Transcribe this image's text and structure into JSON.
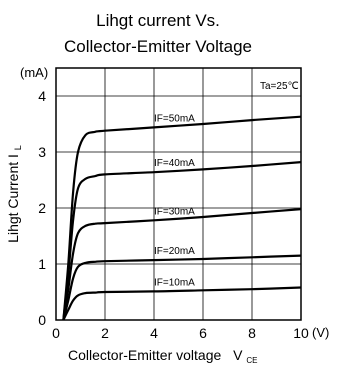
{
  "chart_data": {
    "type": "line",
    "title_lines": [
      "Lihgt current Vs.",
      "Collector-Emitter Voltage"
    ],
    "xlabel": "Collector-Emitter voltage",
    "xlabel_sub": "V",
    "xlabel_sub_small": "CE",
    "ylabel": "Lihgt Current I",
    "ylabel_sub": "L",
    "x_unit": "(V)",
    "y_unit": "(mA)",
    "annotation": "Ta=25℃",
    "xlim": [
      0,
      10
    ],
    "ylim": [
      0,
      4.5
    ],
    "x_ticks": [
      "0",
      "2",
      "4",
      "6",
      "8",
      "10"
    ],
    "x_tick_values": [
      0,
      2,
      4,
      6,
      8,
      10
    ],
    "y_ticks": [
      "0",
      "1",
      "2",
      "3",
      "4"
    ],
    "y_tick_values": [
      0,
      1,
      2,
      3,
      4
    ],
    "grid": true,
    "series": [
      {
        "name": "IF=10mA",
        "x": [
          0.3,
          0.5,
          0.7,
          0.9,
          1.2,
          1.6,
          2,
          4,
          6,
          8,
          10
        ],
        "y": [
          0,
          0.18,
          0.35,
          0.44,
          0.48,
          0.49,
          0.5,
          0.51,
          0.53,
          0.55,
          0.58
        ]
      },
      {
        "name": "IF=20mA",
        "x": [
          0.3,
          0.5,
          0.7,
          0.9,
          1.2,
          1.6,
          2,
          4,
          6,
          8,
          10
        ],
        "y": [
          0,
          0.35,
          0.75,
          0.95,
          1.02,
          1.04,
          1.05,
          1.07,
          1.09,
          1.12,
          1.15
        ]
      },
      {
        "name": "IF=30mA",
        "x": [
          0.3,
          0.5,
          0.7,
          0.9,
          1.2,
          1.6,
          2,
          4,
          6,
          8,
          10
        ],
        "y": [
          0,
          0.55,
          1.2,
          1.55,
          1.68,
          1.72,
          1.73,
          1.78,
          1.84,
          1.91,
          1.98
        ]
      },
      {
        "name": "IF=40mA",
        "x": [
          0.3,
          0.5,
          0.7,
          0.9,
          1.2,
          1.6,
          2,
          4,
          6,
          8,
          10
        ],
        "y": [
          0,
          0.8,
          1.8,
          2.35,
          2.52,
          2.57,
          2.6,
          2.64,
          2.69,
          2.75,
          2.82
        ]
      },
      {
        "name": "IF=50mA",
        "x": [
          0.3,
          0.5,
          0.7,
          0.9,
          1.2,
          1.6,
          2,
          4,
          6,
          8,
          10
        ],
        "y": [
          0,
          1.0,
          2.3,
          3.0,
          3.3,
          3.36,
          3.38,
          3.44,
          3.5,
          3.57,
          3.63
        ]
      }
    ]
  }
}
